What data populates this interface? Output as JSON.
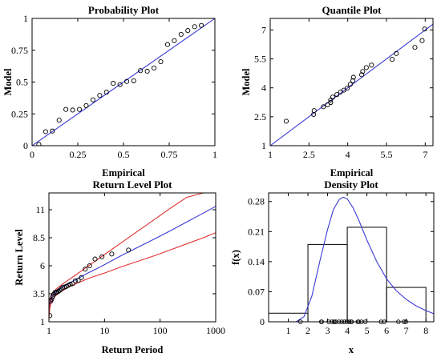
{
  "chart_data": [
    {
      "id": "probability",
      "type": "scatter",
      "title": "Probability Plot",
      "xlabel": "Empirical",
      "ylabel": "Model",
      "xlim": [
        0,
        1
      ],
      "ylim": [
        0,
        1
      ],
      "xticks": [
        0,
        0.25,
        0.5,
        0.75,
        1
      ],
      "xtick_labels": [
        "0",
        "0.25",
        "0.5",
        "0.75",
        "1"
      ],
      "yticks": [
        0,
        0.25,
        0.5,
        0.75,
        1
      ],
      "ytick_labels": [
        "0",
        "0.25",
        "0.5",
        "0.75",
        "1"
      ],
      "line": [
        [
          0,
          0
        ],
        [
          1,
          1
        ]
      ],
      "points": [
        [
          0.037,
          0.01
        ],
        [
          0.074,
          0.11
        ],
        [
          0.111,
          0.115
        ],
        [
          0.148,
          0.2
        ],
        [
          0.185,
          0.285
        ],
        [
          0.222,
          0.28
        ],
        [
          0.259,
          0.285
        ],
        [
          0.296,
          0.315
        ],
        [
          0.333,
          0.36
        ],
        [
          0.37,
          0.395
        ],
        [
          0.407,
          0.42
        ],
        [
          0.444,
          0.49
        ],
        [
          0.481,
          0.48
        ],
        [
          0.518,
          0.505
        ],
        [
          0.556,
          0.51
        ],
        [
          0.593,
          0.59
        ],
        [
          0.63,
          0.585
        ],
        [
          0.667,
          0.61
        ],
        [
          0.704,
          0.66
        ],
        [
          0.741,
          0.795
        ],
        [
          0.778,
          0.825
        ],
        [
          0.815,
          0.875
        ],
        [
          0.852,
          0.905
        ],
        [
          0.889,
          0.935
        ],
        [
          0.926,
          0.945
        ]
      ]
    },
    {
      "id": "quantile",
      "type": "scatter",
      "title": "Quantile Plot",
      "xlabel": "Empirical",
      "ylabel": "Model",
      "xlim": [
        1,
        7.3
      ],
      "ylim": [
        1,
        7.6
      ],
      "xticks": [
        1,
        2.5,
        4,
        5.5,
        7
      ],
      "xtick_labels": [
        "1",
        "2.5",
        "4",
        "5.5",
        "7"
      ],
      "yticks": [
        1,
        2.5,
        4,
        5.5,
        7
      ],
      "ytick_labels": [
        "1",
        "2.5",
        "4",
        "5.5",
        "7"
      ],
      "line": [
        [
          1,
          1
        ],
        [
          7.3,
          7.3
        ]
      ],
      "points": [
        [
          1.62,
          2.27
        ],
        [
          2.68,
          2.62
        ],
        [
          2.7,
          2.82
        ],
        [
          3.06,
          3.02
        ],
        [
          3.22,
          3.12
        ],
        [
          3.34,
          3.24
        ],
        [
          3.34,
          3.37
        ],
        [
          3.42,
          3.52
        ],
        [
          3.58,
          3.65
        ],
        [
          3.72,
          3.78
        ],
        [
          3.85,
          3.88
        ],
        [
          3.98,
          3.98
        ],
        [
          4.1,
          4.18
        ],
        [
          4.2,
          4.37
        ],
        [
          4.22,
          4.55
        ],
        [
          4.54,
          4.68
        ],
        [
          4.58,
          4.85
        ],
        [
          4.72,
          5.05
        ],
        [
          4.92,
          5.18
        ],
        [
          5.72,
          5.48
        ],
        [
          5.88,
          5.78
        ],
        [
          6.6,
          6.1
        ],
        [
          6.88,
          6.45
        ],
        [
          6.98,
          7.05
        ]
      ]
    },
    {
      "id": "return_level",
      "type": "line",
      "title": "Return Level Plot",
      "xlabel": "Return Period",
      "ylabel": "Return Level",
      "xscale": "log",
      "xlim": [
        1,
        1000
      ],
      "ylim": [
        1,
        12.5
      ],
      "xticks": [
        1,
        10,
        100,
        1000
      ],
      "xtick_labels": [
        "1",
        "10",
        "100",
        "1000"
      ],
      "yticks": [
        1,
        3.5,
        6,
        8.5,
        11
      ],
      "ytick_labels": [
        "1",
        "3.5",
        "6",
        "8.5",
        "11"
      ],
      "series": [
        {
          "role": "fit",
          "color": "#3a3ad6",
          "x": [
            1.0,
            1.03,
            1.07,
            1.15,
            1.3,
            1.5,
            1.8,
            2.2,
            2.7,
            3.5,
            5,
            7,
            10,
            20,
            40,
            80,
            150,
            300,
            600,
            1000
          ],
          "y": [
            1.6,
            2.4,
            2.85,
            3.25,
            3.6,
            3.85,
            4.1,
            4.38,
            4.62,
            4.92,
            5.35,
            5.7,
            6.1,
            6.9,
            7.65,
            8.4,
            9.1,
            9.9,
            10.7,
            11.3
          ]
        },
        {
          "role": "upper",
          "color": "#e03030",
          "x": [
            1.0,
            1.03,
            1.07,
            1.15,
            1.3,
            1.5,
            1.8,
            2.2,
            2.7,
            3.5,
            5,
            7,
            10,
            20,
            40,
            80,
            150,
            300,
            600,
            1000
          ],
          "y": [
            2.1,
            2.7,
            3.1,
            3.5,
            3.85,
            4.1,
            4.4,
            4.7,
            5.0,
            5.4,
            5.95,
            6.45,
            7.0,
            8.05,
            9.1,
            10.15,
            11.1,
            12.1,
            12.5,
            12.5
          ]
        },
        {
          "role": "lower",
          "color": "#e03030",
          "x": [
            1.0,
            1.03,
            1.07,
            1.15,
            1.3,
            1.5,
            1.8,
            2.2,
            2.7,
            3.5,
            5,
            7,
            10,
            20,
            40,
            80,
            150,
            300,
            600,
            1000
          ],
          "y": [
            1.2,
            2.05,
            2.5,
            2.95,
            3.3,
            3.55,
            3.8,
            4.05,
            4.28,
            4.52,
            4.85,
            5.1,
            5.35,
            5.9,
            6.4,
            6.9,
            7.4,
            7.95,
            8.5,
            8.95
          ]
        }
      ],
      "points": [
        [
          1.04,
          1.55
        ],
        [
          1.08,
          2.85
        ],
        [
          1.12,
          3.0
        ],
        [
          1.17,
          3.25
        ],
        [
          1.22,
          3.45
        ],
        [
          1.28,
          3.6
        ],
        [
          1.34,
          3.62
        ],
        [
          1.4,
          3.65
        ],
        [
          1.48,
          3.72
        ],
        [
          1.56,
          3.8
        ],
        [
          1.66,
          3.92
        ],
        [
          1.77,
          4.05
        ],
        [
          1.9,
          4.1
        ],
        [
          2.05,
          4.15
        ],
        [
          2.22,
          4.25
        ],
        [
          2.42,
          4.35
        ],
        [
          2.67,
          4.4
        ],
        [
          2.98,
          4.65
        ],
        [
          3.37,
          4.7
        ],
        [
          3.85,
          4.95
        ],
        [
          4.5,
          5.7
        ],
        [
          5.4,
          6.0
        ],
        [
          6.75,
          6.6
        ],
        [
          9.0,
          6.8
        ],
        [
          13.5,
          7.05
        ],
        [
          27,
          7.4
        ]
      ]
    },
    {
      "id": "density",
      "type": "bar",
      "title": "Density Plot",
      "xlabel": "x",
      "ylabel": "f(x)",
      "xlim": [
        0,
        8.4
      ],
      "ylim": [
        0,
        0.3
      ],
      "xticks": [
        1,
        2,
        3,
        4,
        5,
        6,
        7,
        8
      ],
      "xtick_labels": [
        "1",
        "2",
        "3",
        "4",
        "5",
        "6",
        "7",
        "8"
      ],
      "yticks": [
        0,
        0.07,
        0.14,
        0.21,
        0.28
      ],
      "ytick_labels": [
        "0",
        "0.07",
        "0.14",
        "0.21",
        "0.28"
      ],
      "histogram": {
        "edges": [
          0,
          2,
          4,
          6,
          8
        ],
        "heights": [
          0.02,
          0.18,
          0.22,
          0.08
        ]
      },
      "curve": {
        "color": "#3a3ad6",
        "x": [
          1.4,
          1.8,
          2.2,
          2.6,
          3.0,
          3.3,
          3.6,
          3.8,
          4.0,
          4.3,
          4.6,
          5.0,
          5.5,
          6.0,
          6.5,
          7.0,
          7.5,
          8.0,
          8.4
        ],
        "y": [
          0.0,
          0.012,
          0.06,
          0.14,
          0.215,
          0.262,
          0.285,
          0.29,
          0.286,
          0.265,
          0.235,
          0.19,
          0.14,
          0.1,
          0.072,
          0.052,
          0.037,
          0.026,
          0.019
        ]
      },
      "rug": [
        1.62,
        2.68,
        2.7,
        3.06,
        3.22,
        3.34,
        3.34,
        3.42,
        3.58,
        3.72,
        3.85,
        3.98,
        4.1,
        4.2,
        4.22,
        4.54,
        4.58,
        4.72,
        4.92,
        5.72,
        5.88,
        6.6,
        6.88,
        6.98
      ]
    }
  ]
}
